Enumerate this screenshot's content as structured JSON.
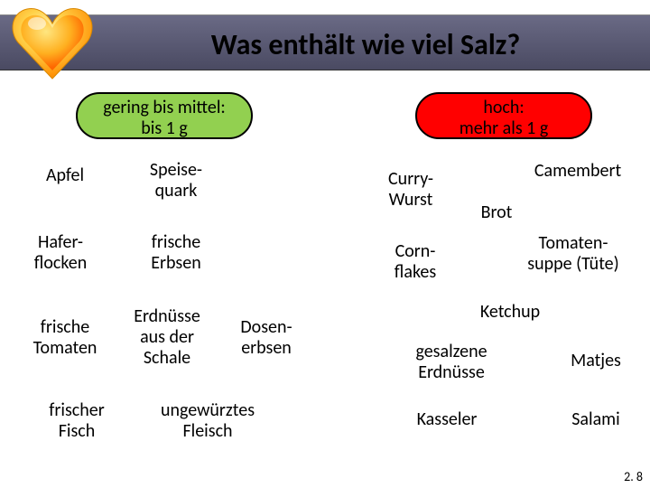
{
  "title": "Was enthält wie viel Salz?",
  "pills": {
    "low": "gering bis mittel:\nbis 1 g",
    "high": "hoch:\nmehr als 1 g"
  },
  "items": {
    "apfel": "Apfel",
    "speisequark": "Speise-\nquark",
    "haferflocken": "Hafer-\nflocken",
    "frische_erbsen": "frische\nErbsen",
    "frische_tomaten": "frische\nTomaten",
    "erdnuesse_schale": "Erdnüsse\naus der\nSchale",
    "dosenerbsen": "Dosen-\nerbsen",
    "frischer_fisch": "frischer\nFisch",
    "ungewuerztes_fleisch": "ungewürztes\nFleisch",
    "curry_wurst": "Curry-\nWurst",
    "camembert": "Camembert",
    "brot": "Brot",
    "cornflakes": "Corn-\nflakes",
    "tomatensuppe": "Tomaten-\nsuppe (Tüte)",
    "ketchup": "Ketchup",
    "gesalzene_erdnuesse": "gesalzene\nErdnüsse",
    "matjes": "Matjes",
    "kasseler": "Kasseler",
    "salami": "Salami"
  },
  "footer": "2. 8",
  "colors": {
    "header_grad_top": "#6a6a85",
    "header_grad_bottom": "#4a4a62",
    "pill_low": "#92d050",
    "pill_high": "#ff0000",
    "heart_outer_top": "#ffe680",
    "heart_outer_bottom": "#ff9900",
    "heart_inner_top": "#ffcc33",
    "heart_inner_bottom": "#ff6600"
  }
}
